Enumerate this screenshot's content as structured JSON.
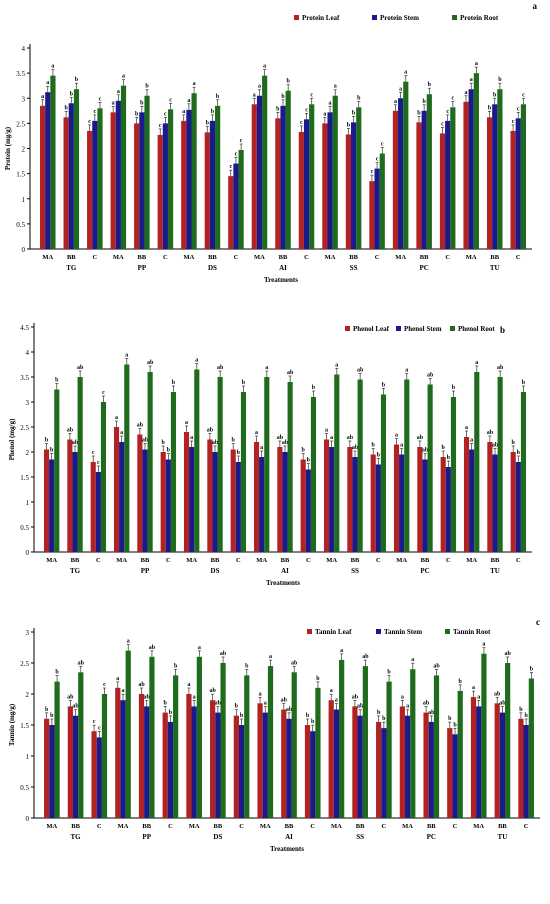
{
  "chart_data": [
    {
      "type": "bar",
      "panel_letter": "a",
      "ylabel": "Protein (mg/g)",
      "xlabel": "Treatments",
      "ylim": [
        0,
        4
      ],
      "yticks": [
        "0",
        "0.5",
        "1",
        "1.5",
        "2",
        "2.5",
        "3",
        "3.5",
        "4"
      ],
      "grid": false,
      "legend_position": "top-right",
      "groups": [
        "TG",
        "PP",
        "DS",
        "AI",
        "SS",
        "PC",
        "TU"
      ],
      "categories": [
        "MA",
        "BB",
        "C",
        "MA",
        "BB",
        "C",
        "MA",
        "BB",
        "C",
        "MA",
        "BB",
        "C",
        "MA",
        "BB",
        "C",
        "MA",
        "BB",
        "C",
        "MA",
        "BB",
        "C"
      ],
      "series": [
        {
          "name": "Protein Leaf",
          "color": "#b22222",
          "values": [
            2.85,
            2.62,
            2.35,
            2.72,
            2.5,
            2.27,
            2.55,
            2.32,
            1.45,
            2.88,
            2.6,
            2.33,
            2.5,
            2.28,
            1.35,
            2.75,
            2.52,
            2.3,
            2.93,
            2.62,
            2.35
          ],
          "labels": [
            "a",
            "b",
            "c",
            "a",
            "b",
            "c",
            "a",
            "b",
            "c",
            "a",
            "b",
            "c",
            "a",
            "b",
            "c",
            "a",
            "b",
            "c",
            "a",
            "b",
            "c"
          ]
        },
        {
          "name": "Protein Stem",
          "color": "#1a1a8c",
          "values": [
            3.12,
            2.9,
            2.55,
            2.95,
            2.72,
            2.5,
            2.77,
            2.55,
            1.7,
            3.05,
            2.85,
            2.58,
            2.72,
            2.52,
            1.6,
            3.0,
            2.75,
            2.55,
            3.18,
            2.88,
            2.6
          ],
          "labels": [
            "a",
            "b",
            "c",
            "a",
            "b",
            "c",
            "a",
            "b",
            "c",
            "a",
            "b",
            "c",
            "a",
            "b",
            "c",
            "a",
            "b",
            "c",
            "a",
            "b",
            "c"
          ]
        },
        {
          "name": "Protein Root",
          "color": "#1e6b1e",
          "values": [
            3.45,
            3.18,
            2.8,
            3.25,
            3.05,
            2.78,
            3.1,
            2.85,
            1.97,
            3.45,
            3.15,
            2.88,
            3.05,
            2.82,
            1.9,
            3.33,
            3.08,
            2.82,
            3.5,
            3.18,
            2.88
          ],
          "labels": [
            "a",
            "b",
            "c",
            "a",
            "b",
            "c",
            "a",
            "b",
            "c",
            "a",
            "b",
            "c",
            "a",
            "b",
            "c",
            "a",
            "b",
            "c",
            "a",
            "b",
            "c"
          ]
        }
      ]
    },
    {
      "type": "bar",
      "panel_letter": "b",
      "ylabel": "Phenol (mg/g)",
      "xlabel": "Treatments",
      "ylim": [
        0,
        4.5
      ],
      "yticks": [
        "0",
        "0.5",
        "1",
        "1.5",
        "2",
        "2.5",
        "3",
        "3.5",
        "4",
        "4.5"
      ],
      "grid": false,
      "legend_position": "top-right",
      "groups": [
        "TG",
        "PP",
        "DS",
        "AI",
        "SS",
        "PC",
        "TU"
      ],
      "categories": [
        "MA",
        "BB",
        "C",
        "MA",
        "BB",
        "C",
        "MA",
        "BB",
        "C",
        "MA",
        "BB",
        "C",
        "MA",
        "BB",
        "C",
        "MA",
        "BB",
        "C",
        "MA",
        "BB",
        "C"
      ],
      "series": [
        {
          "name": "Phenol Leaf",
          "color": "#b22222",
          "values": [
            2.05,
            2.25,
            1.8,
            2.5,
            2.35,
            2.0,
            2.4,
            2.25,
            2.05,
            2.2,
            2.1,
            1.85,
            2.25,
            2.1,
            1.95,
            2.15,
            2.1,
            1.9,
            2.3,
            2.2,
            2.0
          ],
          "labels": [
            "b",
            "ab",
            "c",
            "a",
            "ab",
            "b",
            "a",
            "ab",
            "b",
            "a",
            "ab",
            "b",
            "a",
            "ab",
            "b",
            "a",
            "ab",
            "b",
            "a",
            "ab",
            "b"
          ]
        },
        {
          "name": "Phenol Stem",
          "color": "#1a1a8c",
          "values": [
            1.85,
            2.0,
            1.6,
            2.2,
            2.05,
            1.85,
            2.1,
            2.0,
            1.8,
            1.9,
            2.0,
            1.65,
            2.1,
            1.9,
            1.75,
            1.95,
            1.85,
            1.7,
            2.05,
            1.95,
            1.8
          ],
          "labels": [
            "b",
            "ab",
            "c",
            "a",
            "ab",
            "b",
            "a",
            "ab",
            "b",
            "a",
            "ab",
            "b",
            "a",
            "ab",
            "b",
            "a",
            "ab",
            "b",
            "a",
            "ab",
            "b"
          ]
        },
        {
          "name": "Phenol Root",
          "color": "#1e6b1e",
          "values": [
            3.25,
            3.5,
            3.0,
            3.75,
            3.6,
            3.2,
            3.65,
            3.5,
            3.2,
            3.5,
            3.4,
            3.1,
            3.55,
            3.45,
            3.15,
            3.45,
            3.35,
            3.1,
            3.6,
            3.5,
            3.2
          ],
          "labels": [
            "b",
            "ab",
            "c",
            "a",
            "ab",
            "b",
            "a",
            "ab",
            "b",
            "a",
            "ab",
            "b",
            "a",
            "ab",
            "b",
            "a",
            "ab",
            "b",
            "a",
            "ab",
            "b"
          ]
        }
      ]
    },
    {
      "type": "bar",
      "panel_letter": "c",
      "ylabel": "Tannin (mg/g)",
      "xlabel": "Treatments",
      "ylim": [
        0,
        3
      ],
      "yticks": [
        "0",
        "0.5",
        "1",
        "1.5",
        "2",
        "2.5",
        "3"
      ],
      "grid": false,
      "legend_position": "top-right",
      "groups": [
        "TG",
        "PP",
        "DS",
        "AI",
        "SS",
        "PC",
        "TU"
      ],
      "categories": [
        "MA",
        "BB",
        "C",
        "MA",
        "BB",
        "C",
        "MA",
        "BB",
        "C",
        "MA",
        "BB",
        "C",
        "MA",
        "BB",
        "C",
        "MA",
        "BB",
        "C",
        "MA",
        "BB",
        "C"
      ],
      "series": [
        {
          "name": "Tannin  Leaf",
          "color": "#b22222",
          "values": [
            1.6,
            1.8,
            1.4,
            2.1,
            2.0,
            1.7,
            2.0,
            1.9,
            1.65,
            1.85,
            1.75,
            1.5,
            1.9,
            1.8,
            1.55,
            1.8,
            1.7,
            1.45,
            1.95,
            1.85,
            1.6
          ],
          "labels": [
            "b",
            "ab",
            "c",
            "a",
            "ab",
            "b",
            "a",
            "ab",
            "b",
            "a",
            "ab",
            "b",
            "a",
            "ab",
            "b",
            "a",
            "ab",
            "b",
            "a",
            "ab",
            "b"
          ]
        },
        {
          "name": "Tannin  Stem",
          "color": "#1a1a8c",
          "values": [
            1.5,
            1.65,
            1.3,
            1.9,
            1.8,
            1.55,
            1.8,
            1.7,
            1.5,
            1.7,
            1.6,
            1.4,
            1.75,
            1.65,
            1.45,
            1.65,
            1.55,
            1.35,
            1.8,
            1.7,
            1.5
          ],
          "labels": [
            "b",
            "ab",
            "c",
            "a",
            "ab",
            "b",
            "a",
            "ab",
            "b",
            "a",
            "ab",
            "b",
            "a",
            "ab",
            "b",
            "a",
            "ab",
            "b",
            "a",
            "ab",
            "b"
          ]
        },
        {
          "name": "Tannin  Root",
          "color": "#1e6b1e",
          "values": [
            2.2,
            2.35,
            2.0,
            2.7,
            2.6,
            2.3,
            2.6,
            2.5,
            2.3,
            2.45,
            2.35,
            2.1,
            2.55,
            2.45,
            2.2,
            2.4,
            2.3,
            2.05,
            2.65,
            2.5,
            2.25
          ],
          "labels": [
            "b",
            "ab",
            "c",
            "a",
            "ab",
            "b",
            "a",
            "ab",
            "b",
            "a",
            "ab",
            "b",
            "a",
            "ab",
            "b",
            "a",
            "ab",
            "b",
            "a",
            "ab",
            "b"
          ]
        }
      ]
    }
  ]
}
